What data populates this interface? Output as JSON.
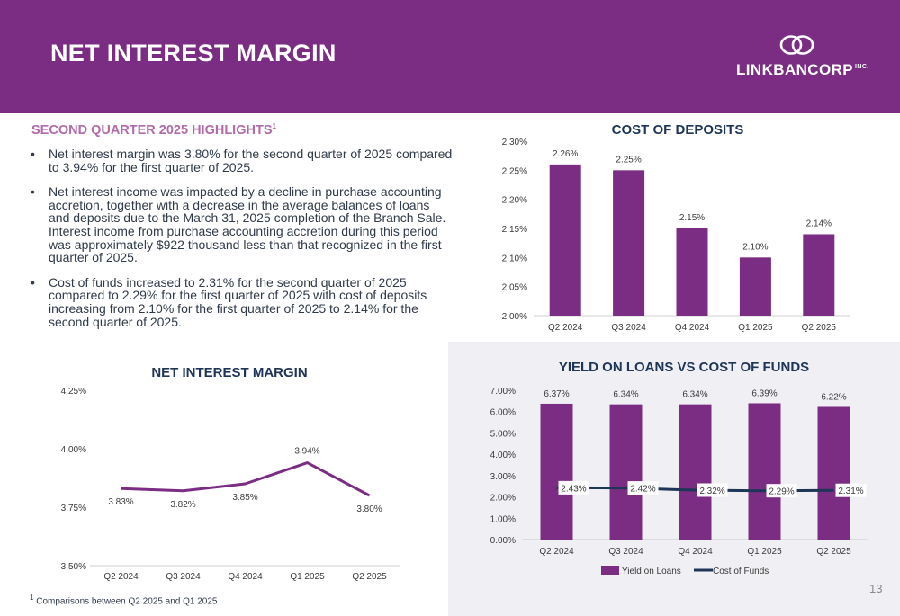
{
  "header": {
    "title": "NET INTEREST MARGIN",
    "logo_text": "LINKBANCORP",
    "logo_sup": "INC."
  },
  "highlights": {
    "title": "SECOND QUARTER 2025 HIGHLIGHTS",
    "title_sup": "1",
    "bullet_char": "•",
    "bullets": [
      "Net interest margin was 3.80% for the second quarter of 2025 compared to 3.94% for the first quarter of 2025.",
      "Net interest income was impacted by a decline in purchase accounting accretion, together with a decrease in the average balances of loans and deposits due to the March 31, 2025 completion of the Branch Sale.  Interest income from purchase accounting accretion during this period was approximately $922 thousand less than that recognized in the first quarter of 2025.",
      "Cost of funds increased to 2.31% for the second quarter of 2025 compared to 2.29% for the first quarter of 2025 with cost of deposits increasing from 2.10% for the first quarter of 2025 to 2.14% for the second quarter of 2025."
    ]
  },
  "footnote": {
    "sup": "1",
    "text": "Comparisons between Q2 2025 and Q1 2025"
  },
  "page_number": "13",
  "colors": {
    "purple": "#7a2d83",
    "navy": "#1d3557",
    "highlight_pink": "#b26aa9"
  },
  "chart_data": [
    {
      "id": "cost_of_deposits",
      "type": "bar",
      "title": "COST OF DEPOSITS",
      "categories": [
        "Q2 2024",
        "Q3 2024",
        "Q4 2024",
        "Q1 2025",
        "Q2 2025"
      ],
      "values": [
        2.26,
        2.25,
        2.15,
        2.1,
        2.14
      ],
      "data_labels": [
        "2.26%",
        "2.25%",
        "2.15%",
        "2.10%",
        "2.14%"
      ],
      "ylim": [
        2.0,
        2.3
      ],
      "yticks": [
        "2.00%",
        "2.05%",
        "2.10%",
        "2.15%",
        "2.20%",
        "2.25%",
        "2.30%"
      ],
      "grid": false
    },
    {
      "id": "net_interest_margin",
      "type": "line",
      "title": "NET INTEREST MARGIN",
      "categories": [
        "Q2 2024",
        "Q3 2024",
        "Q4 2024",
        "Q1 2025",
        "Q2 2025"
      ],
      "values": [
        3.83,
        3.82,
        3.85,
        3.94,
        3.8
      ],
      "data_labels": [
        "3.83%",
        "3.82%",
        "3.85%",
        "3.94%",
        "3.80%"
      ],
      "ylim": [
        3.5,
        4.25
      ],
      "yticks": [
        "3.50%",
        "3.75%",
        "4.00%",
        "4.25%"
      ],
      "grid": false
    },
    {
      "id": "yield_vs_cost",
      "type": "bar",
      "title": "YIELD ON LOANS VS COST OF FUNDS",
      "categories": [
        "Q2 2024",
        "Q3 2024",
        "Q4 2024",
        "Q1 2025",
        "Q2 2025"
      ],
      "series": [
        {
          "name": "Yield on Loans",
          "type": "bar",
          "values": [
            6.37,
            6.34,
            6.34,
            6.39,
            6.22
          ],
          "data_labels": [
            "6.37%",
            "6.34%",
            "6.34%",
            "6.39%",
            "6.22%"
          ]
        },
        {
          "name": "Cost of Funds",
          "type": "line",
          "values": [
            2.43,
            2.42,
            2.32,
            2.29,
            2.31
          ],
          "data_labels": [
            "2.43%",
            "2.42%",
            "2.32%",
            "2.29%",
            "2.31%"
          ]
        }
      ],
      "ylim": [
        0,
        7
      ],
      "yticks": [
        "0.00%",
        "1.00%",
        "2.00%",
        "3.00%",
        "4.00%",
        "5.00%",
        "6.00%",
        "7.00%"
      ],
      "legend": "bottom",
      "grid": false
    }
  ]
}
